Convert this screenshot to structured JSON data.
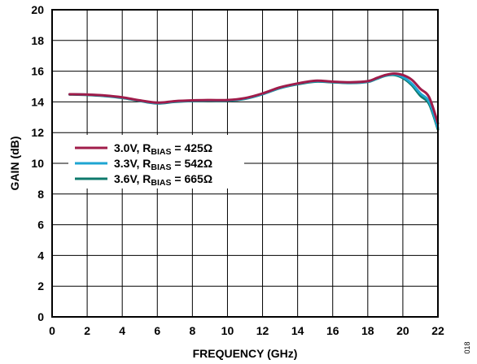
{
  "chart_data": {
    "type": "line",
    "xlabel": "FREQUENCY (GHz)",
    "ylabel": "GAIN (dB)",
    "xlim": [
      0,
      22
    ],
    "ylim": [
      0,
      20
    ],
    "xticks": [
      0,
      2,
      4,
      6,
      8,
      10,
      12,
      14,
      16,
      18,
      20,
      22
    ],
    "yticks": [
      0,
      2,
      4,
      6,
      8,
      10,
      12,
      14,
      16,
      18,
      20
    ],
    "grid": true,
    "legend_position": "left",
    "figure_id": "018",
    "series": [
      {
        "name": "3.0V, RBIAS = 425Ω",
        "legend_main": "3.0V, R",
        "legend_sub": "BIAS",
        "legend_tail": " = 425Ω",
        "color": "#a01c4a",
        "x": [
          1,
          2,
          3,
          4,
          5,
          6,
          7,
          8,
          9,
          10,
          11,
          12,
          13,
          14,
          15,
          16,
          17,
          18,
          18.5,
          19,
          19.5,
          20,
          20.5,
          21,
          21.5,
          22
        ],
        "y": [
          14.5,
          14.48,
          14.42,
          14.3,
          14.1,
          13.95,
          14.05,
          14.1,
          14.12,
          14.12,
          14.25,
          14.55,
          14.95,
          15.2,
          15.38,
          15.32,
          15.28,
          15.35,
          15.55,
          15.75,
          15.85,
          15.75,
          15.45,
          14.85,
          14.3,
          12.6
        ]
      },
      {
        "name": "3.3V, RBIAS = 542Ω",
        "legend_main": "3.3V, R",
        "legend_sub": "BIAS",
        "legend_tail": " = 542Ω",
        "color": "#1ea5d2",
        "x": [
          1,
          2,
          3,
          4,
          5,
          6,
          7,
          8,
          9,
          10,
          11,
          12,
          13,
          14,
          15,
          16,
          17,
          18,
          18.5,
          19,
          19.5,
          20,
          20.5,
          21,
          21.5,
          22
        ],
        "y": [
          14.5,
          14.47,
          14.4,
          14.28,
          14.08,
          13.92,
          14.03,
          14.08,
          14.1,
          14.1,
          14.22,
          14.52,
          14.92,
          15.18,
          15.35,
          15.3,
          15.25,
          15.32,
          15.52,
          15.72,
          15.8,
          15.62,
          15.2,
          14.55,
          14.0,
          12.3
        ]
      },
      {
        "name": "3.6V, RBIAS = 665Ω",
        "legend_main": "3.6V, R",
        "legend_sub": "BIAS",
        "legend_tail": " = 665Ω",
        "color": "#0d7a6c",
        "x": [
          1,
          2,
          3,
          4,
          5,
          6,
          7,
          8,
          9,
          10,
          11,
          12,
          13,
          14,
          15,
          16,
          17,
          18,
          18.5,
          19,
          19.5,
          20,
          20.5,
          21,
          21.5,
          22
        ],
        "y": [
          14.48,
          14.45,
          14.38,
          14.26,
          14.06,
          13.9,
          14.0,
          14.06,
          14.08,
          14.08,
          14.2,
          14.5,
          14.9,
          15.15,
          15.32,
          15.28,
          15.23,
          15.3,
          15.5,
          15.7,
          15.75,
          15.55,
          15.1,
          14.4,
          13.85,
          12.2
        ]
      }
    ]
  }
}
